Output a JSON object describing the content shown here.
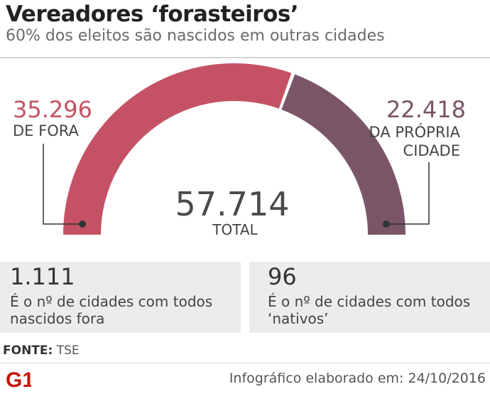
{
  "header": {
    "title": "Vereadores ‘forasteiros’",
    "subtitle": "60% dos eleitos são nascidos em outras cidades"
  },
  "chart_data": {
    "type": "pie",
    "style": "semicircle-gauge",
    "total": {
      "value": "57.714",
      "label": "TOTAL"
    },
    "slices": [
      {
        "value": 35296,
        "value_label": "35.296",
        "label_lines": [
          "DE FORA"
        ],
        "color": "#c55264"
      },
      {
        "value": 22418,
        "value_label": "22.418",
        "label_lines": [
          "DA PRÓPRIA",
          "CIDADE"
        ],
        "color": "#7a5568"
      }
    ]
  },
  "stats": [
    {
      "value": "1.111",
      "label": "É o nº de cidades com todos nascidos fora"
    },
    {
      "value": "96",
      "label": "É o nº de cidades com todos ‘nativos’"
    }
  ],
  "footer": {
    "source_label": "FONTE:",
    "source_value": "TSE",
    "logo_text": "G1",
    "logo_color": "#c4170c",
    "credit": "Infográfico elaborado em: 24/10/2016"
  }
}
